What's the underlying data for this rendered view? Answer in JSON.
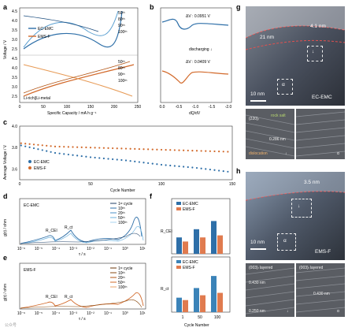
{
  "panels": {
    "a": {
      "label": "a",
      "ylabel": "Voltage / V",
      "xlabel": "Specific Capacity / mA h g⁻¹",
      "yticks": [
        "4.5",
        "4.0",
        "3.5",
        "3.0",
        "2.5"
      ],
      "yticks2": [
        "4.5",
        "4.0",
        "3.5",
        "3.0",
        "2.5"
      ],
      "xticks": [
        "0",
        "50",
        "100",
        "150",
        "200",
        "250"
      ],
      "legend": [
        "EC-EMC",
        "EMS-F"
      ],
      "cycles_top": [
        "50ᵗʰ",
        "80ᵗʰ",
        "90ᵗʰ",
        "100ᵗʰ"
      ],
      "cycles_bot": [
        "50ᵗʰ",
        "80ᵗʰ",
        "90ᵗʰ",
        "100ᵗʰ"
      ],
      "annotation": "Li-rich||Li-metal"
    },
    "b": {
      "label": "b",
      "xlabel": "dQ/dV",
      "xticks": [
        "0.0",
        "-0.5",
        "-1.0",
        "-1.5",
        "-2.0"
      ],
      "yticks": [
        "4.5",
        "4.0",
        "3.5",
        "3.0",
        "2.5"
      ],
      "dv_top": "ΔV : 0.0951 V",
      "dv_bot": "ΔV : 0.0409 V",
      "discharging": "discharging ↓"
    },
    "c": {
      "label": "c",
      "ylabel": "Average Voltage / V",
      "xlabel": "Cycle Number",
      "yticks": [
        "4.0",
        "3.8",
        "3.6"
      ],
      "xticks": [
        "0",
        "50",
        "100",
        "150"
      ],
      "legend": [
        "EC-EMC",
        "EMS-F"
      ]
    },
    "d": {
      "label": "d",
      "ylabel": "g(τ) / ohm",
      "xlabel": "τ / s",
      "title": "EC-EMC",
      "rcei": "R_CEI",
      "rct": "R_ct",
      "xticks": [
        "10⁻⁶",
        "10⁻⁵",
        "10⁻⁴",
        "10⁻³",
        "10⁻²",
        "10⁻¹",
        "10⁰",
        "10¹"
      ],
      "legend": [
        "1ˢᵗ cycle",
        "10ᵗʰ",
        "20ᵗʰ",
        "50ᵗʰ",
        "100ᵗʰ"
      ]
    },
    "e": {
      "label": "e",
      "ylabel": "g(τ) / ohm",
      "xlabel": "τ / s",
      "title": "EMS-F",
      "rcei": "R_CEI",
      "rct": "R_ct",
      "xticks": [
        "10⁻⁶",
        "10⁻⁵",
        "10⁻⁴",
        "10⁻³",
        "10⁻²",
        "10⁻¹",
        "10⁰",
        "10¹"
      ],
      "legend": [
        "1ˢᵗ cycle",
        "10ᵗʰ",
        "20ᵗʰ",
        "50ᵗʰ",
        "100ᵗʰ"
      ]
    },
    "f": {
      "label": "f",
      "ylabel_top": "R_CEI",
      "ylabel_bot": "R_ct",
      "xlabel": "Cycle Number",
      "xticks": [
        "1",
        "50",
        "100"
      ],
      "legend": [
        "EC-EMC",
        "EMS-F"
      ]
    },
    "g": {
      "label": "g",
      "d1": "21 nm",
      "d2": "4.1 nm",
      "scale": "10 nm",
      "name": "EC-EMC",
      "alpha": "α",
      "down": "↓",
      "i1_label": "(220)ᵣ",
      "i1_rock": "rock salt",
      "i1_d": "0.286 nm",
      "i1_dis": "dislocation",
      "i1_mark": "↓",
      "i2_mark": "α"
    },
    "h": {
      "label": "h",
      "d1": "3.5 nm",
      "scale": "10 nm",
      "name": "EMS-F",
      "alpha": "α",
      "down": "↓",
      "i1_tag": "(003)ₗ layered",
      "i1_d1": "0.430 nm",
      "i1_d2": "0.250 nm",
      "i1_mark": "↓",
      "i2_tag": "(003)ₗ layered",
      "i2_d": "0.430 nm",
      "i2_mark": "α"
    }
  },
  "watermark": "公众号",
  "chart_data": [
    {
      "type": "line",
      "panel": "a",
      "xlabel": "Specific Capacity / mA h g⁻¹",
      "ylabel": "Voltage / V",
      "xlim": [
        0,
        250
      ],
      "ylim": [
        2.0,
        4.8
      ],
      "series": [
        {
          "name": "EC-EMC 50th",
          "x": [
            0,
            40,
            80,
            120,
            150
          ],
          "y": [
            3.0,
            3.6,
            3.85,
            4.1,
            4.6
          ]
        },
        {
          "name": "EC-EMC 100th",
          "x": [
            0,
            40,
            80,
            120,
            140
          ],
          "y": [
            3.0,
            3.55,
            3.8,
            4.05,
            4.6
          ]
        },
        {
          "name": "EMS-F 50th",
          "x": [
            0,
            50,
            100,
            150,
            200,
            215
          ],
          "y": [
            3.0,
            3.5,
            3.7,
            3.9,
            4.2,
            4.6
          ]
        },
        {
          "name": "EMS-F 100th",
          "x": [
            0,
            50,
            100,
            150,
            200,
            210
          ],
          "y": [
            3.0,
            3.5,
            3.7,
            3.9,
            4.25,
            4.6
          ]
        }
      ]
    },
    {
      "type": "line",
      "panel": "c",
      "xlabel": "Cycle Number",
      "ylabel": "Average Voltage / V",
      "xlim": [
        0,
        150
      ],
      "ylim": [
        3.5,
        4.0
      ],
      "series": [
        {
          "name": "EC-EMC",
          "x": [
            1,
            25,
            50,
            75,
            100,
            125,
            150
          ],
          "y": [
            3.82,
            3.75,
            3.71,
            3.68,
            3.64,
            3.61,
            3.57
          ]
        },
        {
          "name": "EMS-F",
          "x": [
            1,
            25,
            50,
            75,
            100,
            125,
            150
          ],
          "y": [
            3.84,
            3.81,
            3.8,
            3.79,
            3.78,
            3.77,
            3.76
          ]
        }
      ]
    },
    {
      "type": "bar",
      "panel": "f",
      "categories": [
        "1",
        "50",
        "100"
      ],
      "series": [
        {
          "name": "EC-EMC R_CEI",
          "values": [
            8,
            12,
            16
          ]
        },
        {
          "name": "EMS-F R_CEI",
          "values": [
            6,
            8,
            9
          ]
        },
        {
          "name": "EC-EMC R_ct",
          "values": [
            12,
            20,
            30
          ]
        },
        {
          "name": "EMS-F R_ct",
          "values": [
            10,
            14,
            16
          ]
        }
      ]
    }
  ],
  "colors": {
    "blue": "#2e6fa8",
    "orange": "#d2692a",
    "steel": "#3b83b8",
    "coral": "#e07b4f"
  }
}
